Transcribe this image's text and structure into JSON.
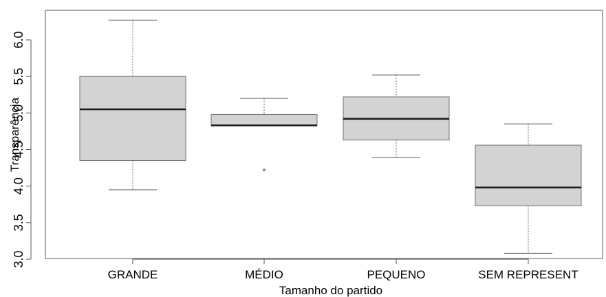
{
  "chart_data": {
    "type": "boxplot",
    "xlabel": "Tamanho do partido",
    "ylabel": "Transparência",
    "ylim": [
      3.0,
      6.25
    ],
    "yticks": [
      3.0,
      3.5,
      4.0,
      4.5,
      5.0,
      5.5,
      6.0
    ],
    "ytick_labels": [
      "3.0",
      "3.5",
      "4.0",
      "4.5",
      "5.0",
      "5.5",
      "6.0"
    ],
    "categories": [
      "GRANDE",
      "MÉDIO",
      "PEQUENO",
      "SEM REPRESENT"
    ],
    "boxes": [
      {
        "category": "GRANDE",
        "whisker_low": 3.95,
        "q1": 4.35,
        "median": 5.05,
        "q3": 5.5,
        "whisker_high": 6.27,
        "outliers": []
      },
      {
        "category": "MÉDIO",
        "whisker_low": 4.83,
        "q1": 4.83,
        "median": 4.83,
        "q3": 4.98,
        "whisker_high": 5.2,
        "outliers": [
          4.22
        ]
      },
      {
        "category": "PEQUENO",
        "whisker_low": 4.39,
        "q1": 4.63,
        "median": 4.92,
        "q3": 5.22,
        "whisker_high": 5.52,
        "outliers": []
      },
      {
        "category": "SEM REPRESENT",
        "whisker_low": 3.08,
        "q1": 3.73,
        "median": 3.98,
        "q3": 4.56,
        "whisker_high": 4.85,
        "outliers": []
      }
    ],
    "grid": false,
    "legend": "none",
    "colors": {
      "box_fill": "#d3d3d3",
      "stroke": "#707070",
      "median": "#1a1a1a"
    }
  }
}
